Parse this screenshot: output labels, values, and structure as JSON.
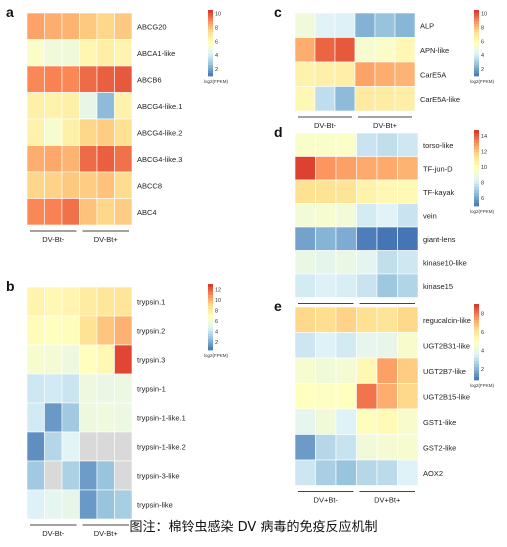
{
  "caption": "图注：棉铃虫感染 DV 病毒的免疫反应机制",
  "palette": [
    "#4575b4",
    "#91bfdb",
    "#e0f3f8",
    "#ffffbf",
    "#fee090",
    "#fc8d59",
    "#d73027"
  ],
  "chart_data": [
    {
      "type": "heatmap",
      "panel": "a",
      "rows": [
        "ABCG20",
        "ABCA1-like",
        "ABCB6",
        "ABCG4-like.1",
        "ABCG4-like.2",
        "ABCG4-like.3",
        "ABCC8",
        "ABC4"
      ],
      "columns": [
        "DV-Bt-",
        "DV-Bt-",
        "DV-Bt-",
        "DV-Bt+",
        "DV-Bt+",
        "DV-Bt+"
      ],
      "groups": [
        "DV-Bt-",
        "DV-Bt+"
      ],
      "values": [
        [
          8.5,
          8.3,
          8.2,
          7.8,
          7.5,
          7.8
        ],
        [
          5.5,
          5.0,
          5.0,
          6.2,
          6.6,
          6.3
        ],
        [
          9.0,
          9.1,
          9.0,
          9.5,
          9.7,
          9.8
        ],
        [
          6.5,
          6.4,
          6.5,
          4.6,
          2.5,
          6.4
        ],
        [
          6.4,
          5.3,
          6.5,
          7.5,
          7.7,
          7.3
        ],
        [
          8.3,
          8.4,
          8.2,
          9.5,
          9.7,
          9.4
        ],
        [
          7.5,
          7.6,
          7.8,
          7.7,
          7.9,
          7.4
        ],
        [
          9.0,
          9.1,
          9.4,
          7.9,
          7.5,
          7.7
        ]
      ],
      "legend": {
        "label": "log2(FPKM)",
        "ticks": [
          10,
          8,
          6,
          4,
          2
        ],
        "range": [
          1,
          10.5
        ]
      }
    },
    {
      "type": "heatmap",
      "panel": "b",
      "rows": [
        "trypsin.1",
        "trypsin.2",
        "trypsin.3",
        "trypsin-1",
        "trypsin-1-like.1",
        "trypsin-1-like.2",
        "trypsin-3-like",
        "trypsin-like"
      ],
      "columns": [
        "DV-Bt-",
        "DV-Bt-",
        "DV-Bt-",
        "DV-Bt+",
        "DV-Bt+",
        "DV-Bt+"
      ],
      "groups": [
        "DV-Bt-",
        "DV-Bt+"
      ],
      "values": [
        [
          7.5,
          7.2,
          7.4,
          8.0,
          8.4,
          8.5
        ],
        [
          7.0,
          6.8,
          6.9,
          8.6,
          9.5,
          10.0
        ],
        [
          6.2,
          6.0,
          5.6,
          6.8,
          7.2,
          12.5
        ],
        [
          4.2,
          4.3,
          4.1,
          5.6,
          5.4,
          5.5
        ],
        [
          4.3,
          1.5,
          3.0,
          5.6,
          5.7,
          5.5
        ],
        [
          1.2,
          3.5,
          4.8,
          null,
          null,
          null
        ],
        [
          3.0,
          null,
          3.3,
          1.6,
          2.8,
          null
        ],
        [
          4.6,
          5.0,
          5.2,
          1.5,
          2.8,
          3.2
        ]
      ],
      "legend": {
        "label": "log2(FPKM)",
        "ticks": [
          12,
          10,
          8,
          6,
          4,
          2
        ],
        "range": [
          0.5,
          13
        ]
      }
    },
    {
      "type": "heatmap",
      "panel": "c",
      "rows": [
        "ALP",
        "APN-like",
        "CarE5A",
        "CarE5A-like"
      ],
      "columns": [
        "DV-Bt-",
        "DV-Bt-",
        "DV-Bt-",
        "DV-Bt+",
        "DV-Bt+",
        "DV-Bt+"
      ],
      "groups": [
        "DV-Bt-",
        "DV-Bt+"
      ],
      "values": [
        [
          5.0,
          4.2,
          4.1,
          2.3,
          2.7,
          2.4
        ],
        [
          8.3,
          9.6,
          9.8,
          5.3,
          5.5,
          6.1
        ],
        [
          6.4,
          6.5,
          6.6,
          8.5,
          8.3,
          8.2
        ],
        [
          6.1,
          3.5,
          2.5,
          6.8,
          6.7,
          6.6
        ]
      ],
      "legend": {
        "label": "log2(FPKM)",
        "ticks": [
          10,
          8,
          6,
          4,
          2
        ],
        "range": [
          1,
          10.5
        ]
      }
    },
    {
      "type": "heatmap",
      "panel": "d",
      "rows": [
        "torso-like",
        "TF-jun-D",
        "TF-kayak",
        "vein",
        "giant-lens",
        "kinase10-like",
        "kinase15"
      ],
      "columns": [
        "DV-Bt-",
        "DV-Bt-",
        "DV-Bt-",
        "DV-Bt+",
        "DV-Bt+",
        "DV-Bt+"
      ],
      "groups": [
        "DV-Bt-",
        "DV-Bt+"
      ],
      "values": [
        [
          9.6,
          9.6,
          9.7,
          7.8,
          7.6,
          7.9
        ],
        [
          14.5,
          13.0,
          12.8,
          12.6,
          12.6,
          12.4
        ],
        [
          11.5,
          11.4,
          11.3,
          10.6,
          10.3,
          10.2
        ],
        [
          9.2,
          9.4,
          9.2,
          8.0,
          8.3,
          7.8
        ],
        [
          6.0,
          6.4,
          6.2,
          5.2,
          5.0,
          5.0
        ],
        [
          8.8,
          8.6,
          8.8,
          8.5,
          7.6,
          7.9
        ],
        [
          8.0,
          8.2,
          8.1,
          7.8,
          6.9,
          7.3
        ]
      ],
      "legend": {
        "label": "log2(FPKM)",
        "ticks": [
          14,
          12,
          10,
          8,
          6
        ],
        "range": [
          5,
          14.8
        ]
      }
    },
    {
      "type": "heatmap",
      "panel": "e",
      "rows": [
        "regucalcin-like",
        "UGT2B31-like",
        "UGT2B7-like",
        "UGT2B15-like",
        "GST1-like",
        "GST2-like",
        "AOX2"
      ],
      "columns": [
        "DV+Bt-",
        "DV+Bt-",
        "DV+Bt-",
        "DV+Bt+",
        "DV+Bt+",
        "DV+Bt+"
      ],
      "groups": [
        "DV+Bt-",
        "DV+Bt+"
      ],
      "values": [
        [
          6.4,
          6.3,
          6.5,
          6.2,
          6.1,
          6.4
        ],
        [
          3.2,
          3.5,
          3.3,
          3.8,
          3.9,
          4.6
        ],
        [
          4.5,
          4.3,
          4.4,
          5.2,
          7.3,
          6.6
        ],
        [
          4.9,
          4.8,
          4.9,
          8.0,
          7.1,
          6.4
        ],
        [
          3.8,
          4.3,
          3.5,
          5.0,
          5.1,
          4.6
        ],
        [
          1.5,
          2.8,
          3.1,
          4.3,
          4.4,
          4.5
        ],
        [
          3.2,
          2.6,
          2.3,
          2.8,
          2.9,
          3.5
        ]
      ],
      "legend": {
        "label": "log2(FPKM)",
        "ticks": [
          8,
          6,
          4,
          2
        ],
        "range": [
          0.8,
          9
        ]
      }
    }
  ]
}
